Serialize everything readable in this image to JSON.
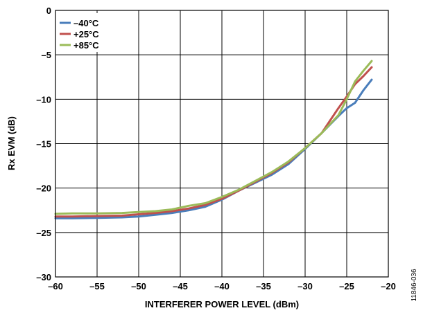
{
  "chart_data": {
    "type": "line",
    "xlabel": "INTERFERER POWER LEVEL (dBm)",
    "ylabel": "Rx EVM (dB)",
    "xlim": [
      -60,
      -20
    ],
    "ylim": [
      -30,
      0
    ],
    "xticks": [
      -60,
      -55,
      -50,
      -45,
      -40,
      -35,
      -30,
      -25,
      -20
    ],
    "yticks": [
      0,
      -5,
      -10,
      -15,
      -20,
      -25,
      -30
    ],
    "xtick_labels": [
      "–60",
      "–55",
      "–50",
      "–45",
      "–40",
      "–35",
      "–30",
      "–25",
      "–20"
    ],
    "ytick_labels": [
      "0",
      "–5",
      "–10",
      "–15",
      "–20",
      "–25",
      "–30"
    ],
    "grid": true,
    "legend_position": "top-left",
    "figure_id": "11846-036",
    "series": [
      {
        "name": "–40°C",
        "color": "#4a7ebb",
        "x": [
          -60,
          -58,
          -55,
          -52,
          -50,
          -48,
          -46,
          -44,
          -42,
          -40,
          -38,
          -36,
          -34,
          -32,
          -30,
          -28,
          -26,
          -25,
          -24,
          -23,
          -22
        ],
        "y": [
          -23.4,
          -23.4,
          -23.35,
          -23.3,
          -23.2,
          -23.0,
          -22.8,
          -22.5,
          -22.1,
          -21.3,
          -20.3,
          -19.4,
          -18.5,
          -17.3,
          -15.6,
          -13.8,
          -11.9,
          -11.0,
          -10.4,
          -9.0,
          -7.8
        ]
      },
      {
        "name": "+25°C",
        "color": "#c0504d",
        "x": [
          -60,
          -58,
          -55,
          -52,
          -50,
          -48,
          -46,
          -44,
          -42,
          -40,
          -38,
          -36,
          -34,
          -32,
          -30,
          -28,
          -26,
          -25,
          -24,
          -23,
          -22
        ],
        "y": [
          -23.2,
          -23.2,
          -23.15,
          -23.1,
          -22.95,
          -22.8,
          -22.6,
          -22.3,
          -21.9,
          -21.2,
          -20.3,
          -19.3,
          -18.3,
          -17.1,
          -15.5,
          -13.8,
          -11.0,
          -9.7,
          -8.3,
          -7.4,
          -6.4
        ]
      },
      {
        "name": "+85°C",
        "color": "#9bbb59",
        "x": [
          -60,
          -58,
          -55,
          -52,
          -50,
          -48,
          -46,
          -44,
          -42,
          -40,
          -38,
          -36,
          -34,
          -32,
          -30,
          -28,
          -26,
          -25,
          -24,
          -23,
          -22
        ],
        "y": [
          -22.9,
          -22.85,
          -22.85,
          -22.8,
          -22.7,
          -22.6,
          -22.4,
          -22.0,
          -21.7,
          -21.0,
          -20.2,
          -19.2,
          -18.2,
          -17.0,
          -15.5,
          -13.8,
          -11.8,
          -10.0,
          -8.0,
          -6.8,
          -5.7
        ]
      }
    ]
  }
}
